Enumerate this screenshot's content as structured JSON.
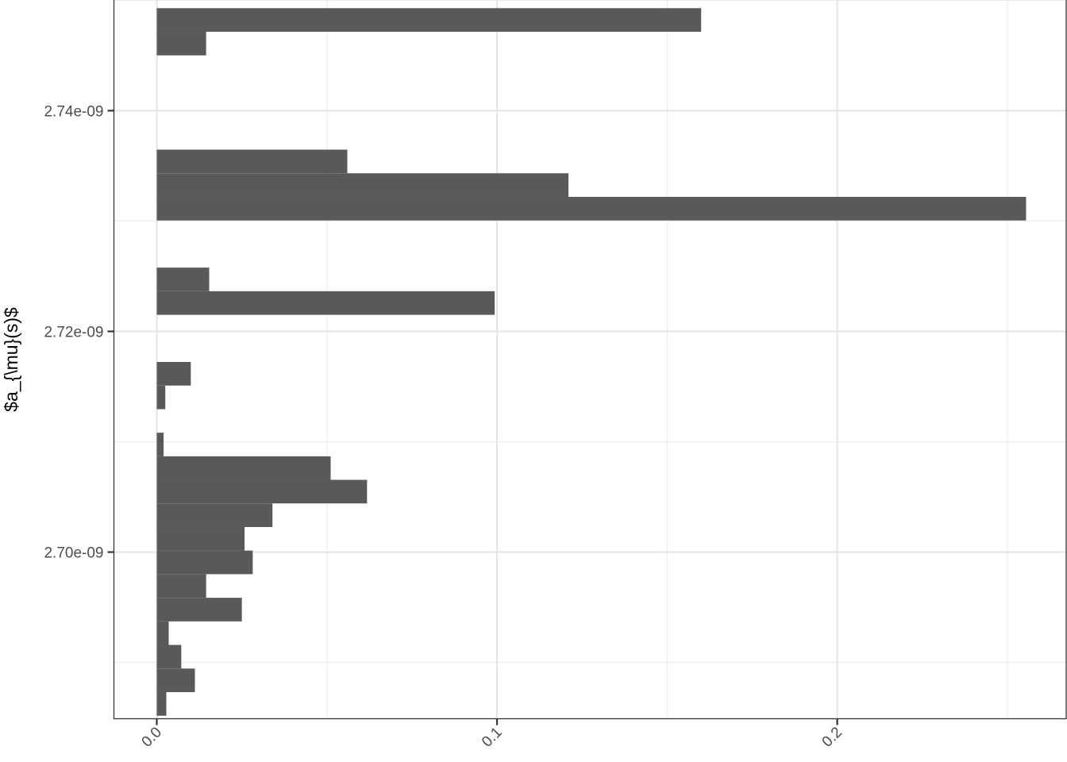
{
  "chart_data": {
    "type": "bar",
    "orientation": "horizontal",
    "title": "",
    "xlabel": "",
    "ylabel": "$a_{\\mu}(s)$",
    "xlim": [
      -0.0126,
      0.2673
    ],
    "ylim": [
      2.6849e-09,
      2.7501e-09
    ],
    "bin_width": 2.137e-12,
    "x_ticks": [
      {
        "value": 0.0,
        "label": "0.0"
      },
      {
        "value": 0.1,
        "label": "0.1"
      },
      {
        "value": 0.2,
        "label": "0.2"
      }
    ],
    "y_ticks": [
      {
        "value": 2.7e-09,
        "label": "2.70e-09"
      },
      {
        "value": 2.72e-09,
        "label": "2.72e-09"
      },
      {
        "value": 2.74e-09,
        "label": "2.74e-09"
      }
    ],
    "x_minor_ticks": [
      0.05,
      0.15,
      0.25
    ],
    "y_minor_ticks": [
      2.69e-09,
      2.71e-09,
      2.73e-09,
      2.75e-09
    ],
    "grid": true,
    "bar_color": "#595959",
    "bars": [
      {
        "y": 2.68624e-09,
        "value": 0.0028
      },
      {
        "y": 2.68838e-09,
        "value": 0.0112
      },
      {
        "y": 2.69052e-09,
        "value": 0.0072
      },
      {
        "y": 2.69265e-09,
        "value": 0.0035
      },
      {
        "y": 2.69479e-09,
        "value": 0.025
      },
      {
        "y": 2.69693e-09,
        "value": 0.0145
      },
      {
        "y": 2.69907e-09,
        "value": 0.0282
      },
      {
        "y": 2.7012e-09,
        "value": 0.0258
      },
      {
        "y": 2.70334e-09,
        "value": 0.034
      },
      {
        "y": 2.70548e-09,
        "value": 0.0618
      },
      {
        "y": 2.70761e-09,
        "value": 0.0511
      },
      {
        "y": 2.70975e-09,
        "value": 0.002
      },
      {
        "y": 2.71402e-09,
        "value": 0.0025
      },
      {
        "y": 2.71616e-09,
        "value": 0.01
      },
      {
        "y": 2.72257e-09,
        "value": 0.0993
      },
      {
        "y": 2.72471e-09,
        "value": 0.0154
      },
      {
        "y": 2.73112e-09,
        "value": 0.2555
      },
      {
        "y": 2.73326e-09,
        "value": 0.121
      },
      {
        "y": 2.7354e-09,
        "value": 0.056
      },
      {
        "y": 2.74608e-09,
        "value": 0.0145
      },
      {
        "y": 2.74822e-09,
        "value": 0.16
      }
    ]
  }
}
